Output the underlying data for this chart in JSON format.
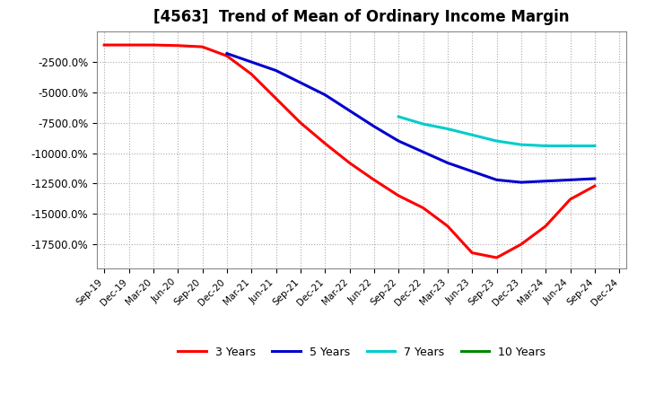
{
  "title": "[4563]  Trend of Mean of Ordinary Income Margin",
  "title_fontsize": 12,
  "background_color": "#ffffff",
  "plot_bg_color": "#ffffff",
  "grid_color": "#aaaaaa",
  "x_labels": [
    "Sep-19",
    "Dec-19",
    "Mar-20",
    "Jun-20",
    "Sep-20",
    "Dec-20",
    "Mar-21",
    "Jun-21",
    "Sep-21",
    "Dec-21",
    "Mar-22",
    "Jun-22",
    "Sep-22",
    "Dec-22",
    "Mar-23",
    "Jun-23",
    "Sep-23",
    "Dec-23",
    "Mar-24",
    "Jun-24",
    "Sep-24",
    "Dec-24"
  ],
  "ylim": [
    -19500,
    0
  ],
  "yticks": [
    -2500,
    -5000,
    -7500,
    -10000,
    -12500,
    -15000,
    -17500
  ],
  "series": {
    "3 Years": {
      "color": "#ff0000",
      "values": [
        -1100,
        -1100,
        -1100,
        -1150,
        -1250,
        -2000,
        -3500,
        -5500,
        -7500,
        -9200,
        -10800,
        -12200,
        -13500,
        -14500,
        -16000,
        -18200,
        -18600,
        -17500,
        -16000,
        -13800,
        -12700,
        null
      ]
    },
    "5 Years": {
      "color": "#0000cc",
      "values": [
        null,
        null,
        null,
        null,
        null,
        -1800,
        -2500,
        -3200,
        -4200,
        -5200,
        -6500,
        -7800,
        -9000,
        -9900,
        -10800,
        -11500,
        -12200,
        -12400,
        -12300,
        -12200,
        -12100,
        null
      ]
    },
    "7 Years": {
      "color": "#00cccc",
      "values": [
        null,
        null,
        null,
        null,
        null,
        null,
        null,
        null,
        null,
        null,
        null,
        null,
        -7000,
        -7600,
        -8000,
        -8500,
        -9000,
        -9300,
        -9400,
        -9400,
        -9400,
        null
      ]
    },
    "10 Years": {
      "color": "#008800",
      "values": [
        null,
        null,
        null,
        null,
        null,
        null,
        null,
        null,
        null,
        null,
        null,
        null,
        null,
        null,
        null,
        null,
        null,
        null,
        null,
        null,
        null,
        null
      ]
    }
  },
  "legend_items": [
    "3 Years",
    "5 Years",
    "7 Years",
    "10 Years"
  ],
  "legend_colors": [
    "#ff0000",
    "#0000cc",
    "#00cccc",
    "#008800"
  ]
}
